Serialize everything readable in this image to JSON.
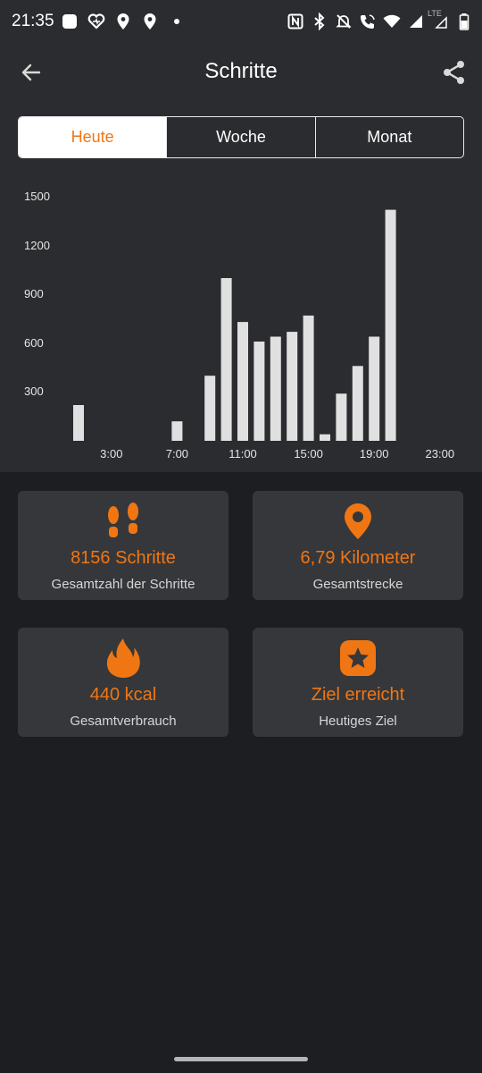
{
  "status": {
    "time": "21:35",
    "network_label": "LTE",
    "left_icons": [
      "app-notification-icon",
      "health-icon",
      "location-pin-icon",
      "location-pin-icon",
      "dot-icon"
    ],
    "right_icons": [
      "nfc-icon",
      "bluetooth-icon",
      "mute-icon",
      "wifi-call-icon",
      "wifi-icon",
      "signal-icon",
      "signal-lte-icon",
      "battery-icon"
    ]
  },
  "header": {
    "title": "Schritte"
  },
  "tabs": [
    {
      "label": "Heute",
      "active": true
    },
    {
      "label": "Woche",
      "active": false
    },
    {
      "label": "Monat",
      "active": false
    }
  ],
  "chart_data": {
    "type": "bar",
    "title": "",
    "xlabel": "",
    "ylabel": "",
    "x_ticks": [
      "3:00",
      "7:00",
      "11:00",
      "15:00",
      "19:00",
      "23:00"
    ],
    "y_ticks": [
      "300",
      "600",
      "900",
      "1200",
      "1500"
    ],
    "ylim": [
      0,
      1500
    ],
    "categories": [
      "1:00",
      "2:00",
      "3:00",
      "4:00",
      "5:00",
      "6:00",
      "7:00",
      "8:00",
      "9:00",
      "10:00",
      "11:00",
      "12:00",
      "13:00",
      "14:00",
      "15:00",
      "16:00",
      "17:00",
      "18:00",
      "19:00",
      "20:00",
      "21:00",
      "22:00",
      "23:00"
    ],
    "values": [
      220,
      0,
      0,
      0,
      0,
      0,
      120,
      0,
      400,
      1000,
      730,
      610,
      640,
      670,
      770,
      40,
      290,
      460,
      640,
      1420,
      0,
      0,
      0
    ],
    "bar_color": "#e0e0e0",
    "grid": false
  },
  "cards": [
    {
      "icon": "footsteps-icon",
      "value": "8156 Schritte",
      "label": "Gesamtzahl der Schritte"
    },
    {
      "icon": "location-pin-icon",
      "value": "6,79 Kilometer",
      "label": "Gesamtstrecke"
    },
    {
      "icon": "flame-icon",
      "value": "440 kcal",
      "label": "Gesamtverbrauch"
    },
    {
      "icon": "star-badge-icon",
      "value": "Ziel erreicht",
      "label": "Heutiges Ziel"
    }
  ],
  "colors": {
    "accent": "#f07614",
    "background": "#1c1e21",
    "header_background": "#2b2c2f",
    "card_background": "#36373a"
  }
}
